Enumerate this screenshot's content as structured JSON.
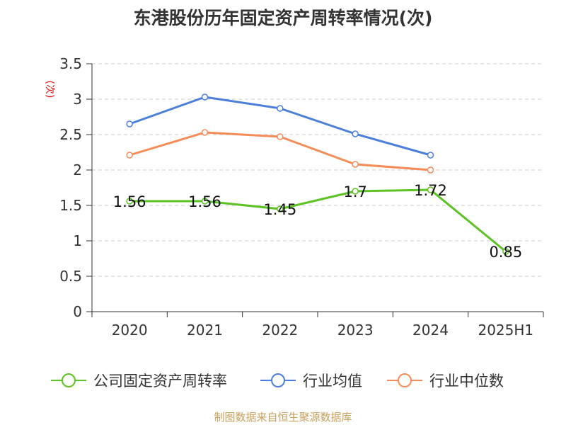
{
  "title": "东港股份历年固定资产周转率情况(次)",
  "source": "制图数据来自恒生聚源数据库",
  "chart_data": {
    "type": "line",
    "title": "东港股份历年固定资产周转率情况(次)",
    "ylabel": "(次)",
    "xlabel": "",
    "ylim": [
      0,
      3.5
    ],
    "yticks": [
      "0",
      "0.5",
      "1",
      "1.5",
      "2",
      "2.5",
      "3",
      "3.5"
    ],
    "categories": [
      "2020",
      "2021",
      "2022",
      "2023",
      "2024",
      "2025H1"
    ],
    "grid": true,
    "legend_position": "bottom",
    "series": [
      {
        "name": "公司固定资产周转率",
        "color": "#5dc223",
        "values": [
          1.56,
          1.56,
          1.45,
          1.7,
          1.72,
          0.85
        ],
        "labels": [
          "1.56",
          "1.56",
          "1.45",
          "1.7",
          "1.72",
          "0.85"
        ]
      },
      {
        "name": "行业均值",
        "color": "#4b7fdb",
        "values": [
          2.65,
          3.03,
          2.87,
          2.51,
          2.21,
          null
        ]
      },
      {
        "name": "行业中位数",
        "color": "#f58c58",
        "values": [
          2.21,
          2.53,
          2.47,
          2.08,
          2.0,
          null
        ]
      }
    ]
  }
}
